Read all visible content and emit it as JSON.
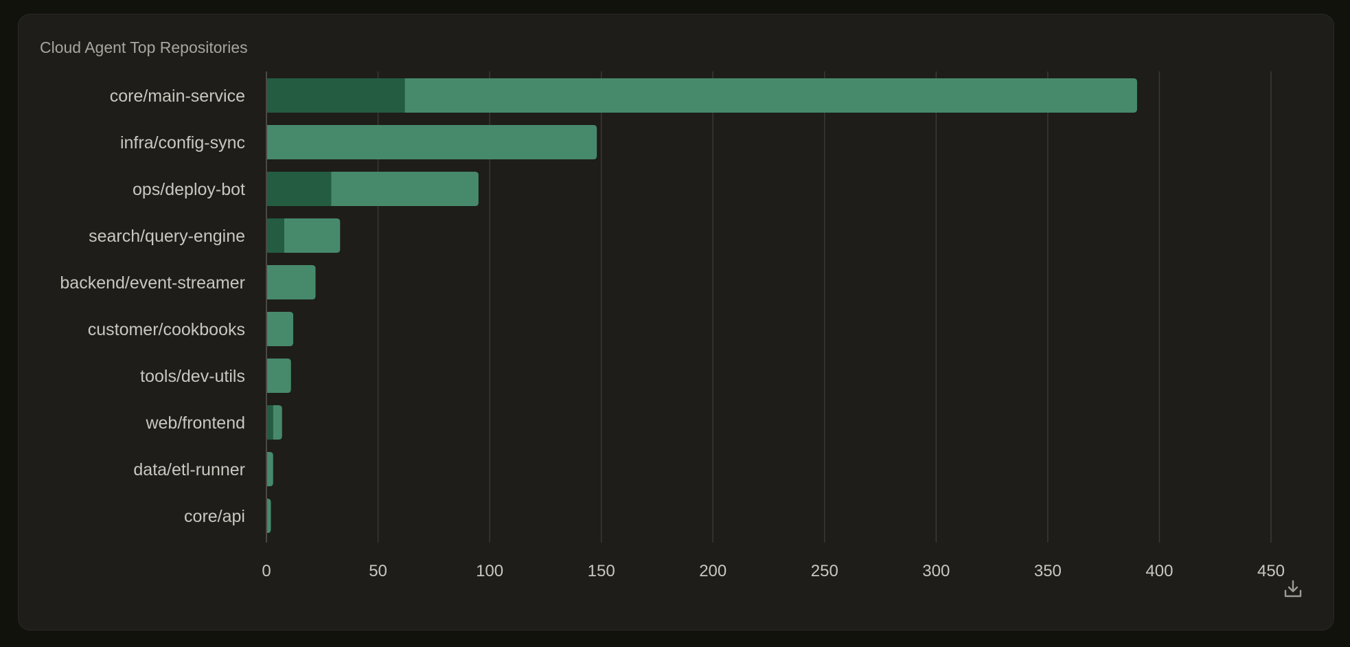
{
  "chart_data": {
    "type": "bar",
    "orientation": "horizontal",
    "stacked": true,
    "title": "Cloud Agent Top Repositories",
    "categories": [
      "core/main-service",
      "infra/config-sync",
      "ops/deploy-bot",
      "search/query-engine",
      "backend/event-streamer",
      "customer/cookbooks",
      "tools/dev-utils",
      "web/frontend",
      "data/etl-runner",
      "core/api"
    ],
    "series": [
      {
        "values": [
          62,
          0,
          29,
          8,
          0,
          0,
          0,
          3,
          0,
          0
        ],
        "color": "#245c42"
      },
      {
        "values": [
          328,
          148,
          66,
          25,
          22,
          12,
          11,
          4,
          3,
          2
        ],
        "color": "#478a6b"
      }
    ],
    "xlim": [
      0,
      450
    ],
    "xticks": [
      0,
      50,
      100,
      150,
      200,
      250,
      300,
      350,
      400,
      450
    ],
    "grid": true,
    "legend": "none"
  },
  "actions": {
    "download_icon": "download-icon"
  },
  "colors": {
    "background": "#1e1d19",
    "grid": "#3a3934",
    "label": "#c9c7bf",
    "title": "#a8a69e"
  }
}
